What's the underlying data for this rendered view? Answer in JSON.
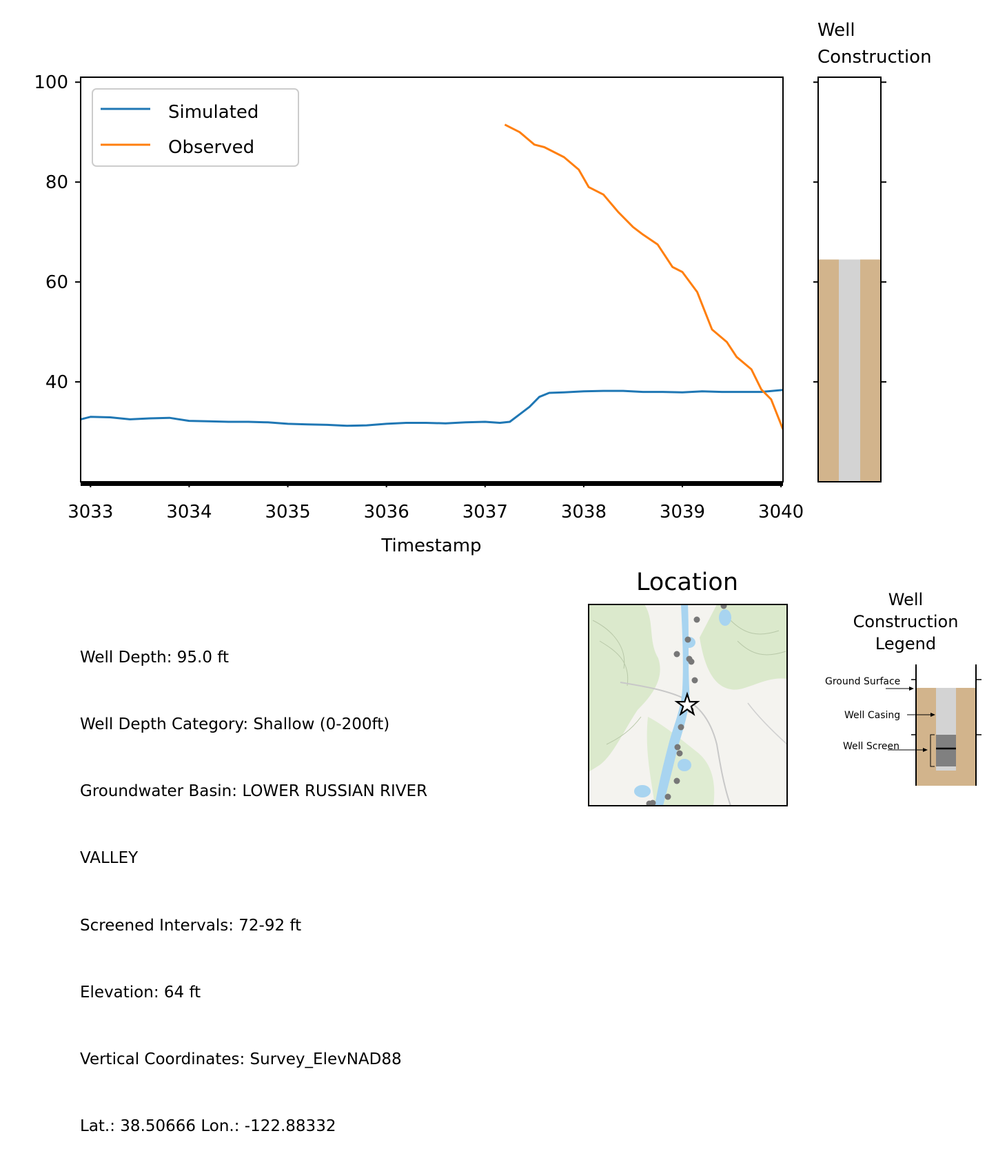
{
  "chart_data": [
    {
      "type": "line",
      "xlabel": "Timestamp",
      "ylabel": "",
      "xlim": [
        3032.9,
        3040.02
      ],
      "ylim": [
        20,
        101
      ],
      "x_ticks": [
        "3033",
        "3034",
        "3035",
        "3036",
        "3037",
        "3038",
        "3039",
        "3040"
      ],
      "y_ticks": [
        "40",
        "60",
        "80",
        "100"
      ],
      "legend_position": "upper-left",
      "series": [
        {
          "name": "Simulated",
          "color": "#1f77b4",
          "points": [
            [
              3032.9,
              32.5
            ],
            [
              3033.0,
              33.0
            ],
            [
              3033.2,
              32.9
            ],
            [
              3033.4,
              32.5
            ],
            [
              3033.6,
              32.7
            ],
            [
              3033.8,
              32.8
            ],
            [
              3034.0,
              32.2
            ],
            [
              3034.2,
              32.1
            ],
            [
              3034.4,
              32.0
            ],
            [
              3034.6,
              32.0
            ],
            [
              3034.8,
              31.9
            ],
            [
              3035.0,
              31.6
            ],
            [
              3035.2,
              31.5
            ],
            [
              3035.4,
              31.4
            ],
            [
              3035.6,
              31.2
            ],
            [
              3035.8,
              31.3
            ],
            [
              3036.0,
              31.6
            ],
            [
              3036.2,
              31.8
            ],
            [
              3036.4,
              31.8
            ],
            [
              3036.6,
              31.7
            ],
            [
              3036.8,
              31.9
            ],
            [
              3037.0,
              32.0
            ],
            [
              3037.15,
              31.8
            ],
            [
              3037.25,
              32.0
            ],
            [
              3037.35,
              33.5
            ],
            [
              3037.45,
              35.0
            ],
            [
              3037.55,
              37.0
            ],
            [
              3037.65,
              37.8
            ],
            [
              3037.8,
              37.9
            ],
            [
              3038.0,
              38.1
            ],
            [
              3038.2,
              38.2
            ],
            [
              3038.4,
              38.2
            ],
            [
              3038.6,
              38.0
            ],
            [
              3038.8,
              38.0
            ],
            [
              3039.0,
              37.9
            ],
            [
              3039.2,
              38.1
            ],
            [
              3039.4,
              38.0
            ],
            [
              3039.6,
              38.0
            ],
            [
              3039.8,
              38.0
            ],
            [
              3040.02,
              38.4
            ]
          ]
        },
        {
          "name": "Observed",
          "color": "#ff7f0e",
          "points": [
            [
              3037.2,
              91.5
            ],
            [
              3037.35,
              90.0
            ],
            [
              3037.5,
              87.5
            ],
            [
              3037.6,
              87.0
            ],
            [
              3037.8,
              85.0
            ],
            [
              3037.95,
              82.5
            ],
            [
              3038.05,
              79.0
            ],
            [
              3038.2,
              77.5
            ],
            [
              3038.35,
              74.0
            ],
            [
              3038.5,
              71.0
            ],
            [
              3038.6,
              69.5
            ],
            [
              3038.75,
              67.5
            ],
            [
              3038.9,
              63.0
            ],
            [
              3039.0,
              62.0
            ],
            [
              3039.15,
              58.0
            ],
            [
              3039.3,
              50.5
            ],
            [
              3039.45,
              48.0
            ],
            [
              3039.55,
              45.0
            ],
            [
              3039.7,
              42.5
            ],
            [
              3039.8,
              38.5
            ],
            [
              3039.9,
              36.5
            ],
            [
              3040.02,
              30.5
            ]
          ]
        }
      ]
    },
    {
      "type": "well-construction-column",
      "title": "Well\nConstruction",
      "ylim": [
        20,
        101
      ],
      "well_depth_ft": 95.0,
      "screened_interval_ft": [
        72,
        92
      ],
      "ground_surface_level": 64.5,
      "colors": {
        "soil": "#d2b48c",
        "casing": "#d3d3d3"
      }
    }
  ],
  "map": {
    "title": "Location",
    "marker": "star",
    "colors": {
      "water": "#a8d4f0",
      "vegetation": "#d8e8c8",
      "background": "#f4f3ef",
      "points": "#777777"
    }
  },
  "legend_panel": {
    "title": "Well\nConstruction\nLegend",
    "ground_surface": "Ground Surface",
    "well_casing": "Well Casing",
    "well_screen": "Well Screen"
  },
  "well_info": [
    "Well Depth: 95.0 ft",
    "Well Depth Category: Shallow (0-200ft)",
    "Groundwater Basin: LOWER RUSSIAN RIVER",
    "VALLEY",
    "Screened Intervals: 72-92 ft",
    "Elevation: 64 ft",
    "Vertical Coordinates: Survey_ElevNAD88",
    "Lat.: 38.50666 Lon.: -122.88332"
  ]
}
